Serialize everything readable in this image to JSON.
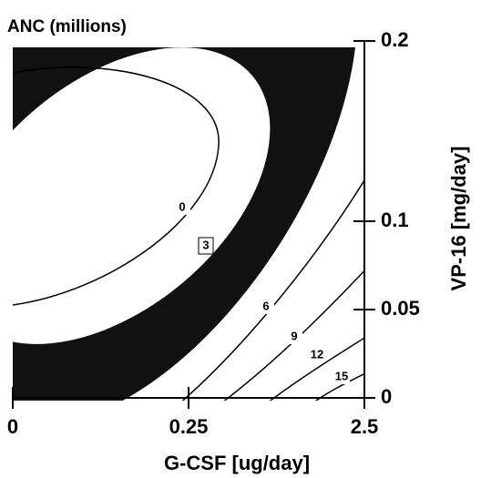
{
  "chart_data": {
    "type": "contour",
    "title": "ANC (millions)",
    "x_label": "G-CSF [ug/day]",
    "y_label": "VP-16 [mg/day]",
    "xticks": [
      0,
      0.25,
      2.5
    ],
    "yticks": [
      0,
      0.05,
      0.1,
      0.2
    ],
    "levels": [
      0,
      3,
      6,
      9,
      12,
      15
    ]
  }
}
